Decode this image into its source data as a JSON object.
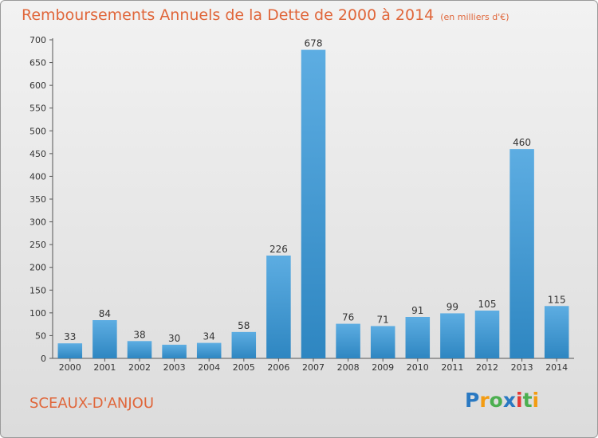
{
  "header": {
    "title": "Remboursements Annuels de la Dette de 2000 à 2014",
    "subtitle": "(en milliers d'€)"
  },
  "footer": {
    "commune": "SCEAUX-D'ANJOU",
    "logo_letters": [
      "P",
      "r",
      "o",
      "x",
      "i",
      "t",
      "i"
    ],
    "logo_colors": [
      "#2a79c2",
      "#f39c12",
      "#4caf50",
      "#2a79c2",
      "#e53935",
      "#4caf50",
      "#f39c12"
    ]
  },
  "chart_data": {
    "type": "bar",
    "title": "Remboursements Annuels de la Dette de 2000 à 2014",
    "subtitle": "(en milliers d'€)",
    "categories": [
      "2000",
      "2001",
      "2002",
      "2003",
      "2004",
      "2005",
      "2006",
      "2007",
      "2008",
      "2009",
      "2010",
      "2011",
      "2012",
      "2013",
      "2014"
    ],
    "values": [
      33,
      84,
      38,
      30,
      34,
      58,
      226,
      678,
      76,
      71,
      91,
      99,
      105,
      460,
      115
    ],
    "ylim": [
      0,
      700
    ],
    "yticks": [
      0,
      50,
      100,
      150,
      200,
      250,
      300,
      350,
      400,
      450,
      500,
      550,
      600,
      650,
      700
    ],
    "grid": false,
    "bar_color_light": "#5dade2",
    "bar_color_dark": "#2e86c1"
  }
}
